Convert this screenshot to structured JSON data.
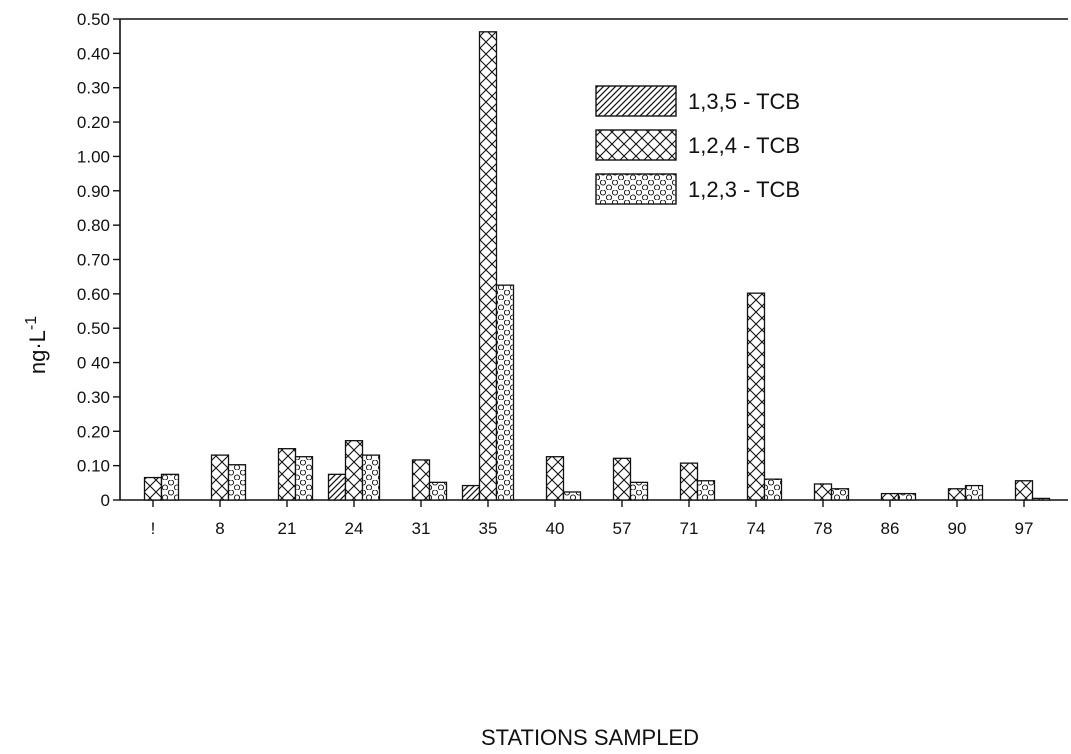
{
  "chart_data": {
    "type": "bar",
    "title": "",
    "xlabel": "STATIONS SAMPLED",
    "ylabel": "ng·L",
    "ylabel_superscript": "-1",
    "y_tick_labels": [
      "0",
      "0.10",
      "0.20",
      "0.30",
      "0 40",
      "0.50",
      "0.60",
      "0.70",
      "0.80",
      "0.90",
      "1.00",
      "0.20",
      "0.30",
      "0.40",
      "0.50"
    ],
    "categories": [
      "1",
      "8",
      "21",
      "24",
      "31",
      "35",
      "40",
      "57",
      "71",
      "74",
      "78",
      "86",
      "90",
      "97"
    ],
    "category_tick_labels": [
      "!",
      "8",
      "21",
      "24",
      "31",
      "35",
      "40",
      "57",
      "71",
      "74",
      "78",
      "86",
      "90",
      "97"
    ],
    "series": [
      {
        "name": "1,3,5 - TCB",
        "pattern": "diagonal-hatch",
        "values": [
          0,
          0,
          0,
          0.08,
          0,
          0.045,
          0,
          0,
          0,
          0,
          0,
          0,
          0,
          0
        ]
      },
      {
        "name": "1,2,4 - TCB",
        "pattern": "cross-hatch",
        "values": [
          0.07,
          0.14,
          0.16,
          0.185,
          0.125,
          1.46,
          0.135,
          0.13,
          0.115,
          0.645,
          0.05,
          0.02,
          0.035,
          0.06
        ]
      },
      {
        "name": "1,2,3 - TCB",
        "pattern": "hexagon",
        "values": [
          0.08,
          0.11,
          0.135,
          0.14,
          0.055,
          0.67,
          0.025,
          0.055,
          0.06,
          0.065,
          0.035,
          0.02,
          0.045,
          0.005
        ]
      }
    ],
    "ylim": [
      0,
      1.5
    ],
    "grid": false,
    "legend_position": "top-right"
  }
}
